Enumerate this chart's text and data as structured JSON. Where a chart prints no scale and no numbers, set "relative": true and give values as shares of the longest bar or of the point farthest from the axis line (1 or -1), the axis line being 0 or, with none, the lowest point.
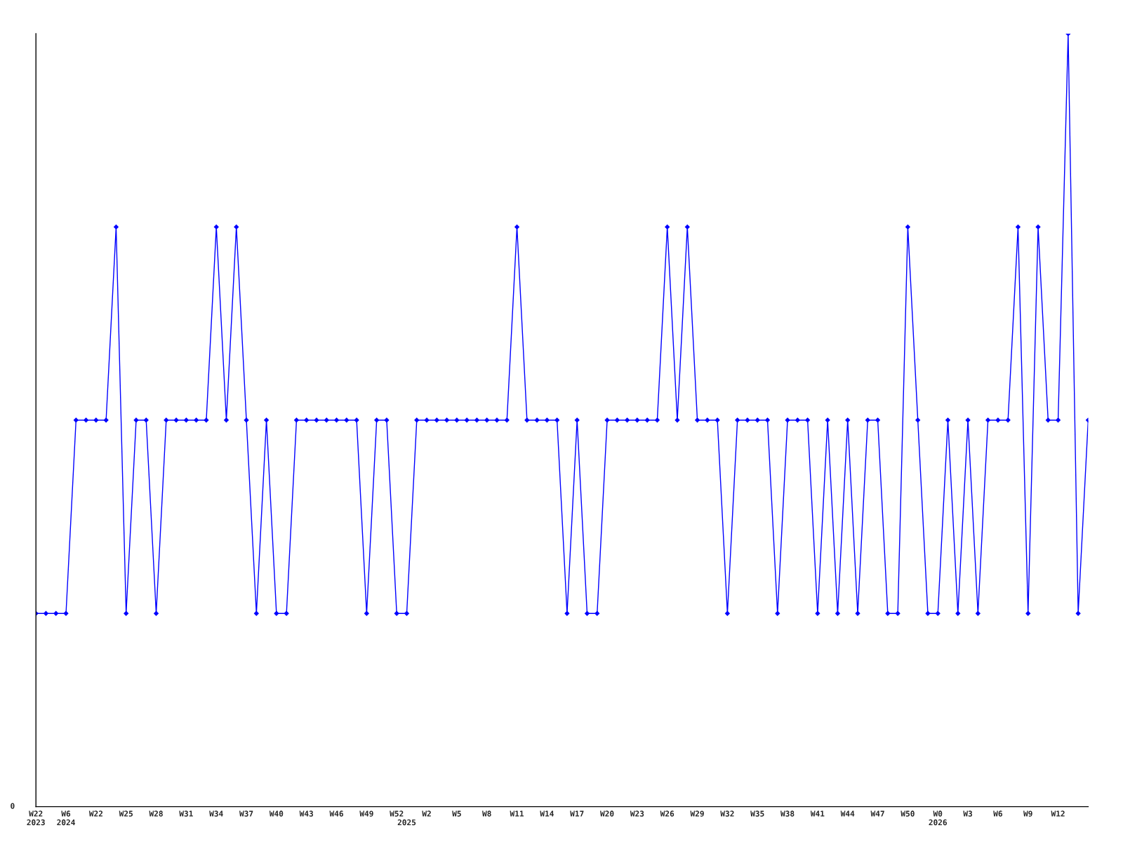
{
  "chart_data": {
    "type": "line",
    "relative": true,
    "color": "#0000ff",
    "marker": "diamond",
    "line_style": "solid",
    "grid": false,
    "annotations": [
      "0"
    ],
    "categories": [
      "W22\n2023",
      null,
      null,
      "W6\n2024",
      null,
      null,
      "W22",
      null,
      null,
      "W25",
      null,
      null,
      "W28",
      null,
      null,
      "W31",
      null,
      null,
      "W34",
      null,
      null,
      "W37",
      null,
      null,
      "W40",
      null,
      null,
      "W43",
      null,
      null,
      "W46",
      null,
      null,
      "W49",
      null,
      null,
      "W52",
      "\n2025",
      null,
      "W2",
      null,
      null,
      "W5",
      null,
      null,
      "W8",
      null,
      null,
      "W11",
      null,
      null,
      "W14",
      null,
      null,
      "W17",
      null,
      null,
      "W20",
      null,
      null,
      "W23",
      null,
      null,
      "W26",
      null,
      null,
      "W29",
      null,
      null,
      "W32",
      null,
      null,
      "W35",
      null,
      null,
      "W38",
      null,
      null,
      "W41",
      null,
      null,
      "W44",
      null,
      null,
      "W47",
      null,
      null,
      "W50",
      null,
      null,
      "W0\n2026",
      null,
      null,
      "W3",
      null,
      null,
      "W6",
      null,
      null,
      "W9",
      null,
      null,
      "W12",
      null,
      null,
      null
    ],
    "values": [
      0.25,
      0.25,
      0.25,
      0.25,
      0.5,
      0.5,
      0.5,
      0.5,
      0.75,
      0.25,
      0.5,
      0.5,
      0.25,
      0.5,
      0.5,
      0.5,
      0.5,
      0.5,
      0.75,
      0.5,
      0.75,
      0.5,
      0.25,
      0.5,
      0.25,
      0.25,
      0.5,
      0.5,
      0.5,
      0.5,
      0.5,
      0.5,
      0.5,
      0.25,
      0.5,
      0.5,
      0.25,
      0.25,
      0.5,
      0.5,
      0.5,
      0.5,
      0.5,
      0.5,
      0.5,
      0.5,
      0.5,
      0.5,
      0.75,
      0.5,
      0.5,
      0.5,
      0.5,
      0.25,
      0.5,
      0.25,
      0.25,
      0.5,
      0.5,
      0.5,
      0.5,
      0.5,
      0.5,
      0.75,
      0.5,
      0.75,
      0.5,
      0.5,
      0.5,
      0.25,
      0.5,
      0.5,
      0.5,
      0.5,
      0.25,
      0.5,
      0.5,
      0.5,
      0.25,
      0.5,
      0.25,
      0.5,
      0.25,
      0.5,
      0.5,
      0.25,
      0.25,
      0.75,
      0.5,
      0.25,
      0.25,
      0.5,
      0.25,
      0.5,
      0.25,
      0.5,
      0.5,
      0.5,
      0.75,
      0.25,
      0.75,
      0.5,
      0.5,
      1,
      0.25,
      0.5
    ]
  }
}
